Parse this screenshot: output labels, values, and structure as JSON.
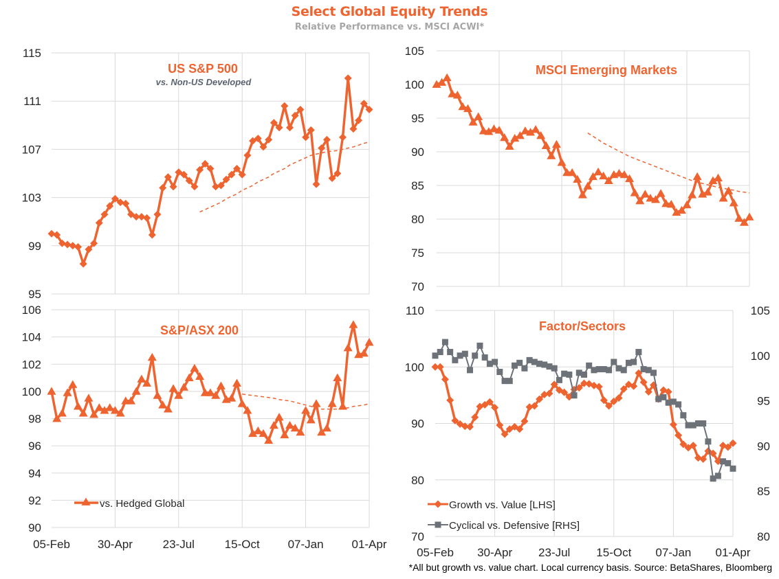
{
  "header": {
    "title": "Select Global Equity Trends",
    "subtitle": "Relative Performance vs. MSCI ACWI*"
  },
  "footnote": "*All but growth vs. value chart. Local currency basis.  Source: BetaShares, Bloomberg",
  "colors": {
    "orange": "#EE6430",
    "grey": "#6D7278",
    "grid": "#D9D9D9"
  },
  "chart_data": [
    {
      "id": "sp500",
      "type": "line",
      "title": "US S&P 500",
      "subtitle": "vs. Non-US Developed",
      "xlabel": "",
      "ylabel": "",
      "ylim": [
        95,
        115
      ],
      "yticks": [
        "95",
        "99",
        "103",
        "107",
        "111",
        "115"
      ],
      "xticks": [
        "05-Feb",
        "30-Apr",
        "23-Jul",
        "15-Oct",
        "07-Jan",
        "01-Apr"
      ],
      "grid": true,
      "marker": "diamond",
      "series": [
        {
          "name": "US S&P 500 vs. Non-US Developed",
          "values": [
            100.0,
            99.9,
            99.2,
            99.1,
            99.0,
            98.9,
            97.5,
            98.7,
            99.2,
            100.9,
            101.6,
            102.3,
            102.9,
            102.6,
            102.5,
            101.6,
            101.4,
            101.4,
            101.3,
            99.9,
            101.6,
            103.8,
            104.7,
            103.9,
            105.1,
            104.9,
            104.4,
            103.9,
            105.3,
            105.8,
            105.4,
            103.9,
            104.0,
            104.5,
            104.9,
            105.4,
            104.9,
            106.5,
            107.7,
            107.9,
            107.2,
            107.8,
            109.2,
            108.8,
            110.6,
            108.8,
            109.8,
            110.3,
            108.0,
            108.6,
            104.1,
            107.1,
            107.8,
            104.6,
            105.0,
            108.0,
            112.9,
            108.7,
            109.4,
            110.8,
            110.3
          ]
        },
        {
          "name": "trend",
          "style": "dashed",
          "start_index": 28,
          "values": [
            101.8,
            102.0,
            102.2,
            102.4,
            102.6,
            102.9,
            103.1,
            103.3,
            103.6,
            103.8,
            104.0,
            104.3,
            104.5,
            104.7,
            105.0,
            105.2,
            105.4,
            105.7,
            105.9,
            106.1,
            106.3,
            106.5,
            106.6,
            106.7,
            106.8,
            106.85,
            106.9,
            107.0,
            107.1,
            107.2,
            107.35,
            107.5,
            107.6
          ]
        }
      ]
    },
    {
      "id": "em",
      "type": "line",
      "title": "MSCI Emerging Markets",
      "xlabel": "",
      "ylabel": "",
      "ylim": [
        70,
        105
      ],
      "yticks": [
        "70",
        "75",
        "80",
        "85",
        "90",
        "95",
        "100",
        "105"
      ],
      "xticks": [],
      "grid": true,
      "marker": "triangle",
      "series": [
        {
          "name": "MSCI Emerging Markets",
          "values": [
            100.0,
            100.3,
            101.0,
            98.6,
            98.4,
            96.7,
            96.4,
            94.4,
            95.2,
            93.1,
            93.0,
            93.4,
            93.2,
            92.1,
            90.8,
            92.0,
            92.4,
            93.1,
            92.9,
            93.3,
            92.4,
            90.9,
            89.4,
            91.1,
            88.4,
            86.9,
            86.9,
            85.9,
            83.6,
            84.9,
            86.3,
            87.0,
            86.4,
            85.7,
            86.6,
            86.8,
            86.6,
            86.0,
            83.9,
            82.7,
            83.7,
            83.1,
            82.9,
            83.8,
            82.3,
            82.2,
            81.0,
            81.3,
            82.1,
            83.6,
            86.3,
            83.7,
            84.0,
            85.7,
            86.1,
            83.1,
            84.2,
            82.4,
            80.1,
            79.5,
            80.3
          ]
        },
        {
          "name": "trend",
          "style": "dashed",
          "start_index": 29,
          "values": [
            92.8,
            92.3,
            91.8,
            91.3,
            90.9,
            90.5,
            90.1,
            89.7,
            89.3,
            89.0,
            88.7,
            88.4,
            88.1,
            87.8,
            87.5,
            87.2,
            86.9,
            86.6,
            86.3,
            86.0,
            85.7,
            85.5,
            85.3,
            85.1,
            84.9,
            84.7,
            84.6,
            84.4,
            84.3,
            84.1,
            84.0,
            83.9
          ]
        }
      ]
    },
    {
      "id": "asx",
      "type": "line",
      "title": "S&P/ASX 200",
      "xlabel": "",
      "ylabel": "",
      "ylim": [
        90,
        106
      ],
      "yticks": [
        "90",
        "92",
        "94",
        "96",
        "98",
        "100",
        "102",
        "104",
        "106"
      ],
      "xticks": [
        "05-Feb",
        "30-Apr",
        "23-Jul",
        "15-Oct",
        "07-Jan",
        "01-Apr"
      ],
      "grid": true,
      "marker": "triangle",
      "legend": {
        "label": "vs. Hedged Global",
        "position": "bottom-left"
      },
      "series": [
        {
          "name": "vs. Hedged Global",
          "values": [
            100.0,
            98.0,
            98.4,
            99.9,
            100.5,
            98.9,
            98.4,
            99.5,
            98.3,
            98.8,
            98.6,
            98.8,
            98.6,
            98.4,
            99.3,
            99.3,
            100.0,
            100.9,
            100.6,
            102.5,
            99.7,
            99.0,
            98.7,
            100.2,
            99.7,
            100.3,
            101.0,
            101.7,
            101.1,
            99.9,
            99.9,
            99.7,
            100.4,
            99.4,
            99.5,
            100.6,
            99.1,
            98.6,
            96.9,
            97.1,
            96.9,
            96.4,
            97.5,
            98.1,
            96.8,
            97.5,
            97.3,
            97.0,
            98.6,
            97.9,
            99.1,
            97.0,
            97.3,
            99.1,
            101.0,
            98.9,
            103.2,
            104.9,
            102.7,
            102.8,
            103.6
          ]
        },
        {
          "name": "trend",
          "style": "dashed",
          "start_index": 36,
          "values": [
            99.8,
            99.75,
            99.7,
            99.65,
            99.6,
            99.55,
            99.5,
            99.4,
            99.35,
            99.3,
            99.2,
            99.1,
            99.0,
            98.9,
            98.8,
            98.7,
            98.7,
            98.7,
            98.7,
            98.75,
            98.8,
            98.9,
            98.95,
            99.0,
            99.1
          ]
        }
      ]
    },
    {
      "id": "factor",
      "type": "line",
      "title": "Factor/Sectors",
      "xlabel": "",
      "ylabel": "",
      "ylim": [
        70,
        110
      ],
      "ylim_right": [
        80,
        105
      ],
      "yticks": [
        "70",
        "80",
        "90",
        "100",
        "110"
      ],
      "yticks_right": [
        "80",
        "85",
        "90",
        "95",
        "100",
        "105"
      ],
      "xticks": [
        "05-Feb",
        "30-Apr",
        "23-Jul",
        "15-Oct",
        "07-Jan",
        "01-Apr"
      ],
      "grid": true,
      "legend": {
        "position": "bottom-left"
      },
      "series": [
        {
          "name": "Growth vs. Value [LHS]",
          "axis": "left",
          "marker": "diamond",
          "values": [
            100.0,
            100.0,
            97.8,
            94.1,
            90.5,
            89.9,
            89.5,
            89.4,
            91.1,
            93.0,
            93.3,
            93.8,
            92.8,
            89.7,
            88.1,
            89.0,
            89.4,
            89.0,
            90.4,
            92.9,
            93.1,
            94.3,
            95.1,
            95.3,
            96.9,
            95.9,
            95.5,
            94.7,
            96.0,
            96.3,
            97.1,
            97.0,
            96.7,
            96.5,
            94.1,
            93.1,
            93.9,
            94.5,
            96.1,
            96.9,
            96.6,
            98.9,
            97.3,
            95.6,
            96.8,
            94.3,
            95.9,
            95.6,
            89.8,
            87.9,
            86.3,
            85.7,
            86.1,
            83.9,
            83.7,
            85.1,
            84.7,
            83.3,
            86.1,
            85.8,
            86.5
          ]
        },
        {
          "name": "Cyclical vs. Defensive [RHS]",
          "axis": "right",
          "marker": "square",
          "values": [
            100.0,
            100.4,
            101.5,
            100.4,
            99.5,
            100.0,
            100.2,
            98.4,
            100.0,
            101.1,
            99.8,
            99.1,
            99.3,
            98.2,
            97.2,
            97.2,
            98.9,
            99.2,
            98.6,
            99.5,
            99.3,
            99.1,
            99.0,
            98.8,
            98.6,
            97.3,
            98.0,
            97.9,
            95.6,
            98.1,
            97.9,
            98.9,
            98.4,
            98.5,
            98.5,
            98.4,
            99.3,
            98.6,
            98.4,
            99.2,
            99.3,
            100.4,
            98.5,
            98.4,
            98.1,
            95.2,
            95.4,
            94.8,
            94.9,
            94.6,
            93.4,
            92.3,
            92.3,
            92.5,
            92.5,
            90.5,
            86.4,
            86.7,
            88.3,
            88.1,
            87.5
          ]
        }
      ]
    }
  ]
}
